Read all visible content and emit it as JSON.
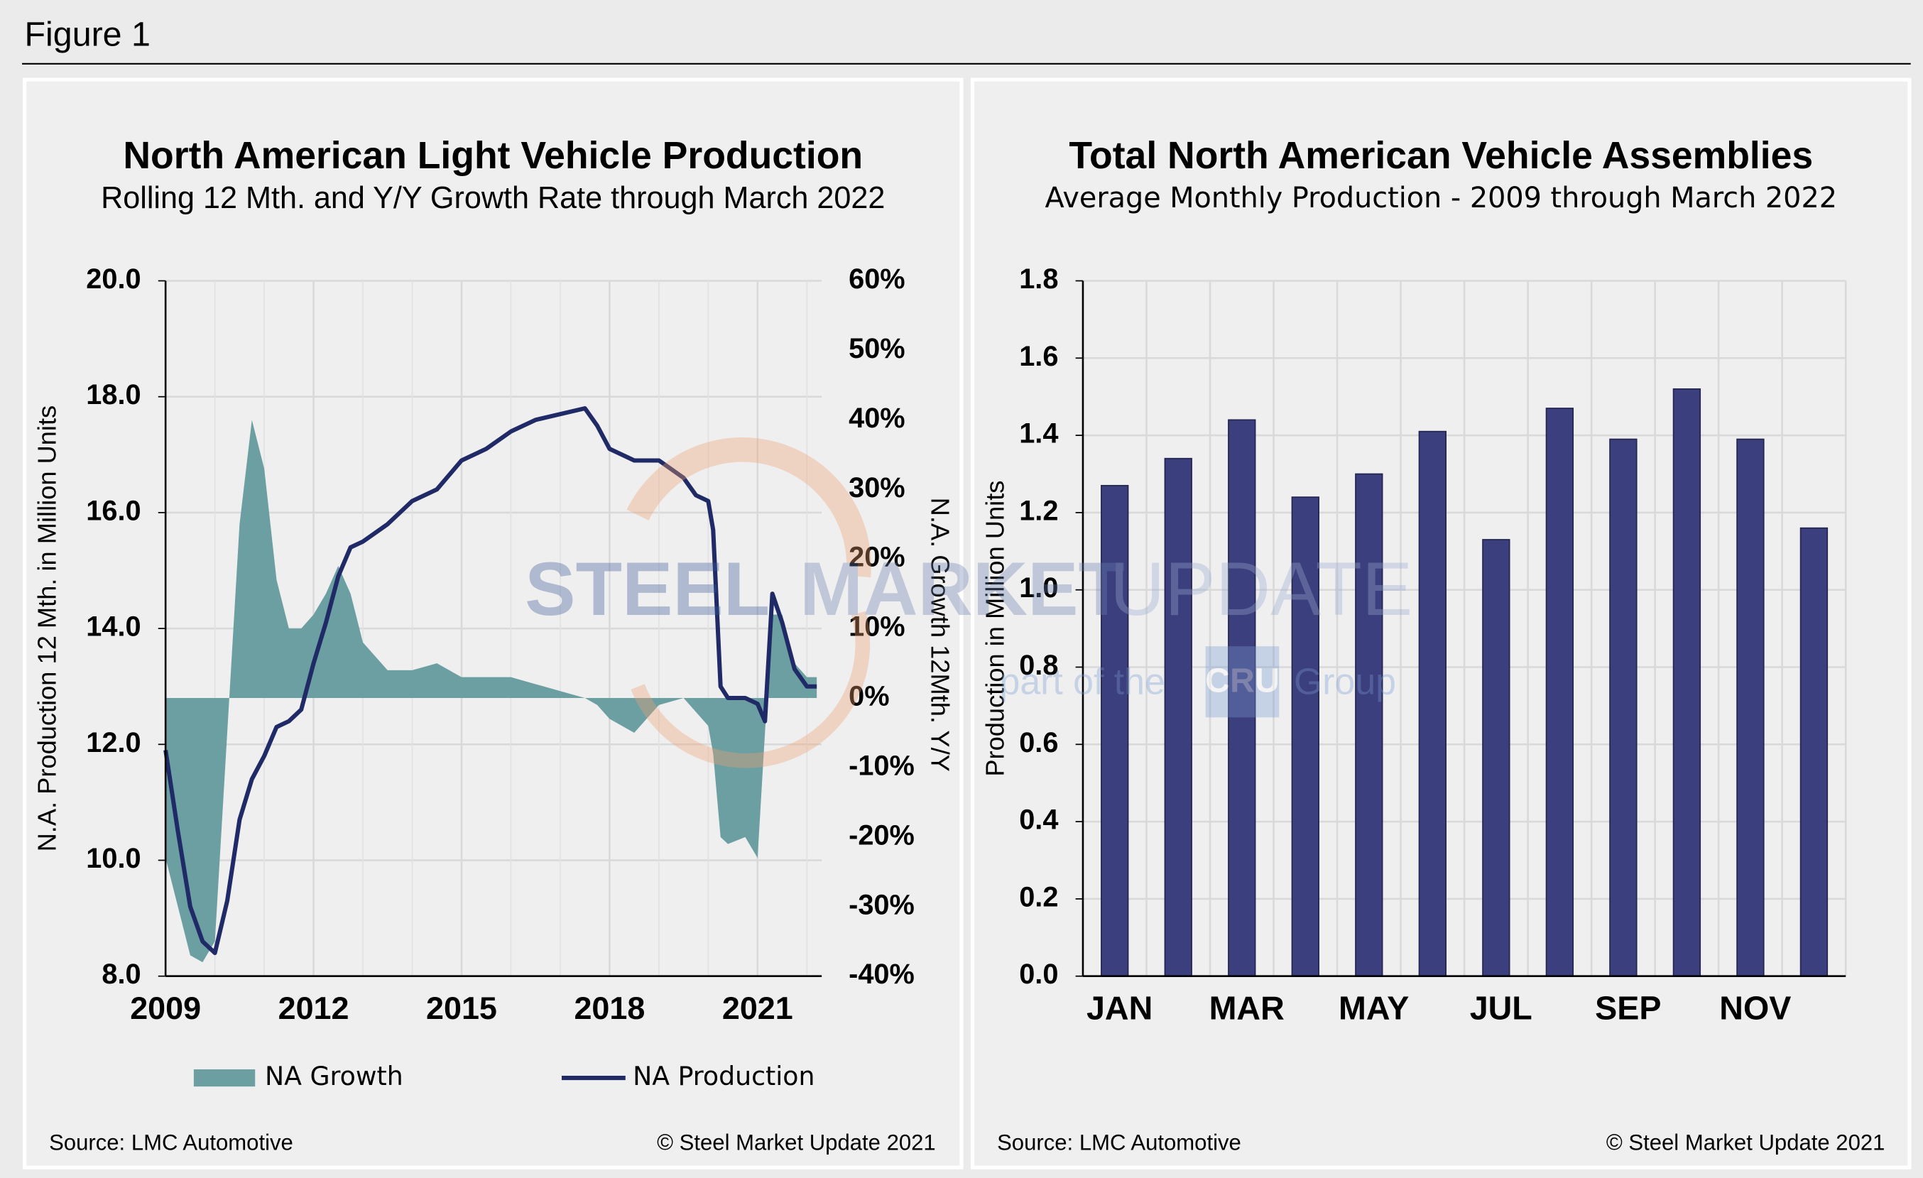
{
  "header": {
    "title": "Figure 1"
  },
  "watermark": [
    "STEEL",
    "MARKET",
    "UPDATE",
    "part of the",
    "CRU",
    "Group"
  ],
  "chart_data": [
    {
      "type": "line",
      "title": "North American Light Vehicle Production",
      "subtitle": "Rolling 12 Mth. and Y/Y Growth Rate through March 2022",
      "ylabel": "N.A. Production 12 Mth. in Million Units",
      "y2label": "N.A. Growth 12Mth. Y/Y",
      "x": [
        2009.0,
        2009.25,
        2009.5,
        2009.75,
        2010.0,
        2010.25,
        2010.5,
        2010.75,
        2011.0,
        2011.25,
        2011.5,
        2011.75,
        2012.0,
        2012.25,
        2012.5,
        2012.75,
        2013.0,
        2013.5,
        2014.0,
        2014.5,
        2015.0,
        2015.5,
        2016.0,
        2016.5,
        2017.0,
        2017.5,
        2017.75,
        2018.0,
        2018.5,
        2019.0,
        2019.5,
        2019.75,
        2020.0,
        2020.1,
        2020.25,
        2020.4,
        2020.75,
        2021.0,
        2021.15,
        2021.3,
        2021.5,
        2021.75,
        2022.0,
        2022.2
      ],
      "xlim": [
        2009,
        2022.3
      ],
      "xticks": [
        2009,
        2012,
        2015,
        2018,
        2021
      ],
      "ylim": [
        8,
        20
      ],
      "yticks": [
        {
          "value": 8,
          "label": "8.0"
        },
        {
          "value": 10,
          "label": "10.0"
        },
        {
          "value": 12,
          "label": "12.0"
        },
        {
          "value": 14,
          "label": "14.0"
        },
        {
          "value": 16,
          "label": "16.0"
        },
        {
          "value": 18,
          "label": "18.0"
        },
        {
          "value": 20,
          "label": "20.0"
        }
      ],
      "y2lim": [
        -40,
        60
      ],
      "y2ticks": [
        {
          "value": -40,
          "label": "-40%"
        },
        {
          "value": -30,
          "label": "-30%"
        },
        {
          "value": -20,
          "label": "-20%"
        },
        {
          "value": -10,
          "label": "-10%"
        },
        {
          "value": 0,
          "label": "0%"
        },
        {
          "value": 10,
          "label": "10%"
        },
        {
          "value": 20,
          "label": "20%"
        },
        {
          "value": 30,
          "label": "30%"
        },
        {
          "value": 40,
          "label": "40%"
        },
        {
          "value": 50,
          "label": "50%"
        },
        {
          "value": 60,
          "label": "60%"
        }
      ],
      "grid": true,
      "series": [
        {
          "name": "NA Growth",
          "type": "area",
          "axis": "y2",
          "color": "#6c9fa2",
          "values": [
            -23,
            -30,
            -37,
            -38,
            -35,
            -5,
            25,
            40,
            33,
            17,
            10,
            10,
            12,
            15,
            19,
            15,
            8,
            4,
            4,
            5,
            3,
            3,
            3,
            2,
            1,
            0,
            -1,
            -3,
            -5,
            -1,
            0,
            -2,
            -4,
            -8,
            -20,
            -21,
            -20,
            -23,
            -5,
            12,
            12,
            5,
            3,
            3
          ]
        },
        {
          "name": "NA Production",
          "type": "line",
          "axis": "y",
          "color": "#1f2a66",
          "values": [
            11.9,
            10.5,
            9.2,
            8.6,
            8.4,
            9.3,
            10.7,
            11.4,
            11.8,
            12.3,
            12.4,
            12.6,
            13.4,
            14.1,
            14.9,
            15.4,
            15.5,
            15.8,
            16.2,
            16.4,
            16.9,
            17.1,
            17.4,
            17.6,
            17.7,
            17.8,
            17.5,
            17.1,
            16.9,
            16.9,
            16.6,
            16.3,
            16.2,
            15.7,
            13.0,
            12.8,
            12.8,
            12.7,
            12.4,
            14.6,
            14.1,
            13.3,
            13.0,
            13.0
          ]
        }
      ],
      "source": "Source: LMC Automotive",
      "copyright": "© Steel Market Update 2021"
    },
    {
      "type": "bar",
      "title": "Total North American Vehicle Assemblies",
      "subtitle": "Average Monthly Production - 2009 through March 2022",
      "ylabel": "Production in Million Units",
      "categories": [
        "JAN",
        null,
        "MAR",
        null,
        "MAY",
        null,
        "JUL",
        null,
        "SEP",
        null,
        "NOV",
        null
      ],
      "values": [
        1.27,
        1.34,
        1.44,
        1.24,
        1.3,
        1.41,
        1.13,
        1.47,
        1.39,
        1.52,
        1.39,
        1.16
      ],
      "color": "#3b3f7e",
      "ylim": [
        0,
        1.8
      ],
      "yticks": [
        {
          "value": 0,
          "label": "0.0"
        },
        {
          "value": 0.2,
          "label": "0.2"
        },
        {
          "value": 0.4,
          "label": "0.4"
        },
        {
          "value": 0.6,
          "label": "0.6"
        },
        {
          "value": 0.8,
          "label": "0.8"
        },
        {
          "value": 1.0,
          "label": "1.0"
        },
        {
          "value": 1.2,
          "label": "1.2"
        },
        {
          "value": 1.4,
          "label": "1.4"
        },
        {
          "value": 1.6,
          "label": "1.6"
        },
        {
          "value": 1.8,
          "label": "1.8"
        }
      ],
      "grid": true,
      "source": "Source: LMC Automotive",
      "copyright": "© Steel Market Update 2021"
    }
  ]
}
